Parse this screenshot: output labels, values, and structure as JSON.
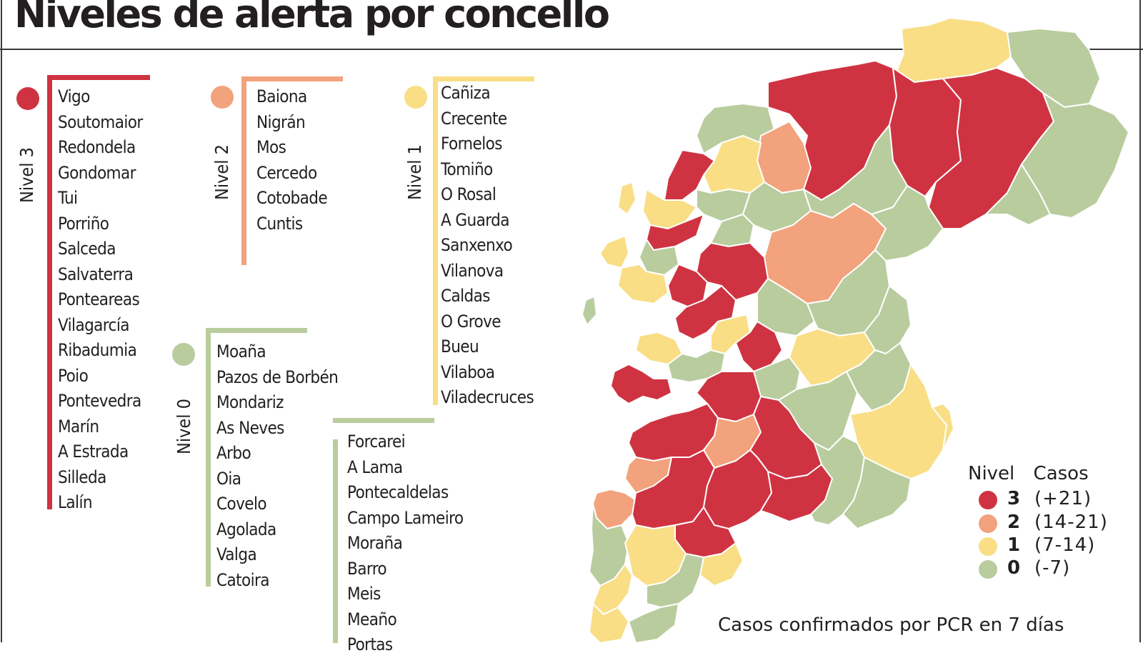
{
  "title": "Niveles de alerta por concello",
  "colors": {
    "nivel3": "#cf3342",
    "nivel2": "#f2a27c",
    "nivel1": "#f9de86",
    "nivel0": "#b9cc9e",
    "border": "#ffffff"
  },
  "groups": {
    "nivel3": {
      "label": "Nivel 3",
      "items": [
        "Vigo",
        "Soutomaior",
        "Redondela",
        "Gondomar",
        "Tui",
        "Porriño",
        "Salceda",
        "Salvaterra",
        "Ponteareas",
        "Vilagarcía",
        "Ribadumia",
        "Poio",
        "Pontevedra",
        "Marín",
        "A Estrada",
        "Silleda",
        "Lalín"
      ]
    },
    "nivel2": {
      "label": "Nivel 2",
      "items": [
        "Baiona",
        "Nigrán",
        "Mos",
        "Cercedo",
        "Cotobade",
        "Cuntis"
      ]
    },
    "nivel1": {
      "label": "Nivel 1",
      "items": [
        "Cañiza",
        "Crecente",
        "Fornelos",
        "Tomiño",
        "O Rosal",
        "A Guarda",
        "Sanxenxo",
        "Vilanova",
        "Caldas",
        "O Grove",
        "Bueu",
        "Vilaboa",
        "Viladecruces"
      ]
    },
    "nivel0": {
      "label": "Nivel 0",
      "items": [
        "Moaña",
        "Pazos de Borbén",
        "Mondariz",
        "As Neves",
        "Arbo",
        "Oia",
        "Covelo",
        "Agolada",
        "Valga",
        "Catoira"
      ],
      "items2": [
        "Forcarei",
        "A Lama",
        "Pontecaldelas",
        "Campo Lameiro",
        "Moraña",
        "Barro",
        "Meis",
        "Meaño",
        "Portas"
      ]
    }
  },
  "legend": {
    "header_nivel": "Nivel",
    "header_casos": "Casos",
    "rows": [
      {
        "level": "3",
        "cases": "(+21)",
        "color": "#cf3342"
      },
      {
        "level": "2",
        "cases": "(14-21)",
        "color": "#f2a27c"
      },
      {
        "level": "1",
        "cases": "(7-14)",
        "color": "#f9de86"
      },
      {
        "level": "0",
        "cases": "(-7)",
        "color": "#b9cc9e"
      }
    ]
  },
  "source": "Casos confirmados por PCR en 7 días"
}
